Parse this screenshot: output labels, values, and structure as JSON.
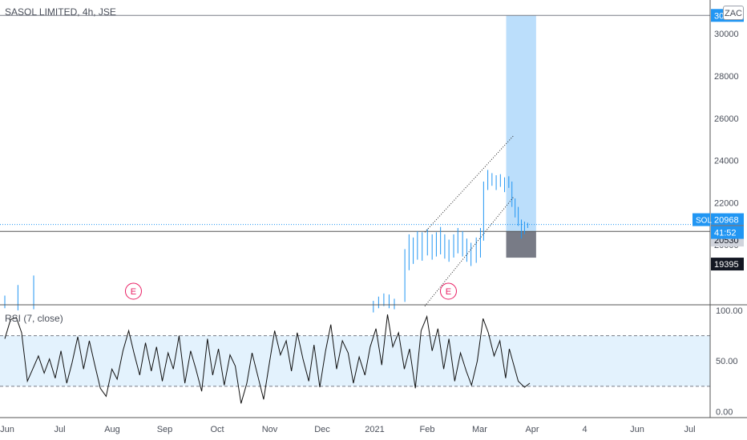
{
  "header": {
    "title": "SASOL LIMITED, 4h, JSE",
    "currency": "ZAC"
  },
  "rsi_label": "RSI (7, close)",
  "colors": {
    "candles": "#2196f3",
    "grid_line": "#787b86",
    "target_zone": "#bbdefb",
    "stop_zone": "#787b86",
    "rsi_band": "#e3f2fd",
    "earnings": "#e91e63",
    "last_price": "#2196f3"
  },
  "chart_data": [
    {
      "type": "candlestick",
      "symbol": "SOL",
      "x": [
        "Jun",
        "Jul",
        "Aug",
        "Sep",
        "Oct",
        "Nov",
        "Dec",
        "2021",
        "Feb",
        "Mar",
        "Apr",
        "4",
        "Jun",
        "Jul"
      ],
      "y_ticks": [
        20000,
        22000,
        24000,
        26000,
        28000,
        30000
      ],
      "ylim": [
        17200,
        31600
      ],
      "last_price": 20968,
      "countdown": "41:52",
      "price_labels": [
        {
          "value": 30870,
          "style": "blue"
        },
        {
          "value": 20968,
          "style": "blue"
        },
        {
          "value": 20639,
          "style": "gray"
        },
        {
          "value": 20530,
          "style": "light"
        },
        {
          "value": 19395,
          "style": "black"
        }
      ],
      "earnings_markers": [
        {
          "x": "Aug",
          "label": "E"
        },
        {
          "x": "Feb",
          "label": "E"
        }
      ],
      "long_position": {
        "entry": 20639,
        "target": 30870,
        "stop": 19395
      },
      "trend_channel": [
        {
          "from": {
            "x": "Feb",
            "y": 20600
          },
          "to": {
            "x": "Mar",
            "y": 25200
          }
        },
        {
          "from": {
            "x": "Feb",
            "y": 17100
          },
          "to": {
            "x": "Mar",
            "y": 22300
          }
        }
      ],
      "series": [
        {
          "values": [
            [
              0,
              17000,
              17600
            ],
            [
              0.25,
              16900,
              18100
            ],
            [
              0.55,
              16950,
              18550
            ],
            [
              7.02,
              16800,
              17350
            ],
            [
              7.12,
              17000,
              17550
            ],
            [
              7.22,
              17100,
              17700
            ],
            [
              7.32,
              17000,
              17650
            ],
            [
              7.42,
              16950,
              17450
            ],
            [
              7.62,
              17300,
              19800
            ],
            [
              7.7,
              18800,
              20500
            ],
            [
              7.78,
              19100,
              20350
            ],
            [
              7.86,
              19300,
              20650
            ],
            [
              7.95,
              19250,
              20600
            ],
            [
              8.05,
              19500,
              20750
            ],
            [
              8.14,
              19300,
              20500
            ],
            [
              8.22,
              19450,
              20600
            ],
            [
              8.3,
              19550,
              20850
            ],
            [
              8.38,
              19350,
              20500
            ],
            [
              8.46,
              19200,
              20250
            ],
            [
              8.55,
              19400,
              20500
            ],
            [
              8.63,
              19600,
              20800
            ],
            [
              8.72,
              19450,
              20650
            ],
            [
              8.8,
              19200,
              20300
            ],
            [
              8.88,
              19000,
              20100
            ],
            [
              8.98,
              19150,
              20350
            ],
            [
              9.06,
              19400,
              20800
            ],
            [
              9.12,
              20200,
              23000
            ],
            [
              9.2,
              22600,
              23550
            ],
            [
              9.28,
              22800,
              23400
            ],
            [
              9.36,
              22600,
              23300
            ],
            [
              9.44,
              22750,
              23350
            ],
            [
              9.52,
              22500,
              23200
            ],
            [
              9.6,
              22700,
              23250
            ],
            [
              9.66,
              21800,
              23000
            ],
            [
              9.72,
              21300,
              22200
            ],
            [
              9.78,
              20900,
              21800
            ],
            [
              9.84,
              20300,
              21200
            ],
            [
              9.9,
              20500,
              21100
            ],
            [
              9.96,
              20800,
              21050
            ]
          ]
        }
      ]
    },
    {
      "type": "line",
      "name": "RSI (7, close)",
      "y_ticks": [
        0,
        50,
        100
      ],
      "ylim": [
        -6,
        104
      ],
      "bands": [
        25,
        75
      ],
      "series": [
        {
          "values": [
            [
              0,
              72
            ],
            [
              0.11,
              91
            ],
            [
              0.22,
              93
            ],
            [
              0.32,
              78
            ],
            [
              0.43,
              30
            ],
            [
              0.54,
              43
            ],
            [
              0.64,
              55
            ],
            [
              0.75,
              38
            ],
            [
              0.85,
              52
            ],
            [
              0.96,
              33
            ],
            [
              1.07,
              60
            ],
            [
              1.18,
              28
            ],
            [
              1.28,
              48
            ],
            [
              1.39,
              74
            ],
            [
              1.5,
              42
            ],
            [
              1.61,
              70
            ],
            [
              1.71,
              47
            ],
            [
              1.82,
              23
            ],
            [
              1.93,
              15
            ],
            [
              2.04,
              42
            ],
            [
              2.14,
              32
            ],
            [
              2.25,
              60
            ],
            [
              2.36,
              80
            ],
            [
              2.46,
              58
            ],
            [
              2.57,
              36
            ],
            [
              2.68,
              68
            ],
            [
              2.79,
              40
            ],
            [
              2.89,
              64
            ],
            [
              3,
              30
            ],
            [
              3.11,
              58
            ],
            [
              3.21,
              42
            ],
            [
              3.32,
              75
            ],
            [
              3.43,
              28
            ],
            [
              3.54,
              60
            ],
            [
              3.64,
              42
            ],
            [
              3.75,
              20
            ],
            [
              3.86,
              72
            ],
            [
              3.96,
              36
            ],
            [
              4.07,
              62
            ],
            [
              4.18,
              26
            ],
            [
              4.29,
              56
            ],
            [
              4.39,
              45
            ],
            [
              4.5,
              8
            ],
            [
              4.61,
              28
            ],
            [
              4.71,
              58
            ],
            [
              4.82,
              35
            ],
            [
              4.93,
              12
            ],
            [
              5.04,
              48
            ],
            [
              5.14,
              80
            ],
            [
              5.25,
              56
            ],
            [
              5.36,
              70
            ],
            [
              5.46,
              40
            ],
            [
              5.57,
              78
            ],
            [
              5.68,
              52
            ],
            [
              5.79,
              30
            ],
            [
              5.89,
              66
            ],
            [
              6,
              24
            ],
            [
              6.11,
              60
            ],
            [
              6.21,
              86
            ],
            [
              6.32,
              42
            ],
            [
              6.43,
              70
            ],
            [
              6.54,
              58
            ],
            [
              6.64,
              28
            ],
            [
              6.75,
              54
            ],
            [
              6.86,
              36
            ],
            [
              6.96,
              64
            ],
            [
              7.07,
              82
            ],
            [
              7.18,
              46
            ],
            [
              7.29,
              96
            ],
            [
              7.39,
              64
            ],
            [
              7.5,
              78
            ],
            [
              7.61,
              42
            ],
            [
              7.71,
              62
            ],
            [
              7.82,
              23
            ],
            [
              7.93,
              80
            ],
            [
              8.04,
              94
            ],
            [
              8.14,
              60
            ],
            [
              8.25,
              82
            ],
            [
              8.36,
              42
            ],
            [
              8.46,
              72
            ],
            [
              8.57,
              30
            ],
            [
              8.68,
              58
            ],
            [
              8.79,
              40
            ],
            [
              8.89,
              26
            ],
            [
              9,
              50
            ],
            [
              9.11,
              92
            ],
            [
              9.21,
              78
            ],
            [
              9.32,
              55
            ],
            [
              9.43,
              70
            ],
            [
              9.54,
              33
            ],
            [
              9.61,
              62
            ],
            [
              9.7,
              45
            ],
            [
              9.78,
              30
            ],
            [
              9.9,
              24
            ],
            [
              10,
              28
            ]
          ]
        }
      ]
    }
  ]
}
